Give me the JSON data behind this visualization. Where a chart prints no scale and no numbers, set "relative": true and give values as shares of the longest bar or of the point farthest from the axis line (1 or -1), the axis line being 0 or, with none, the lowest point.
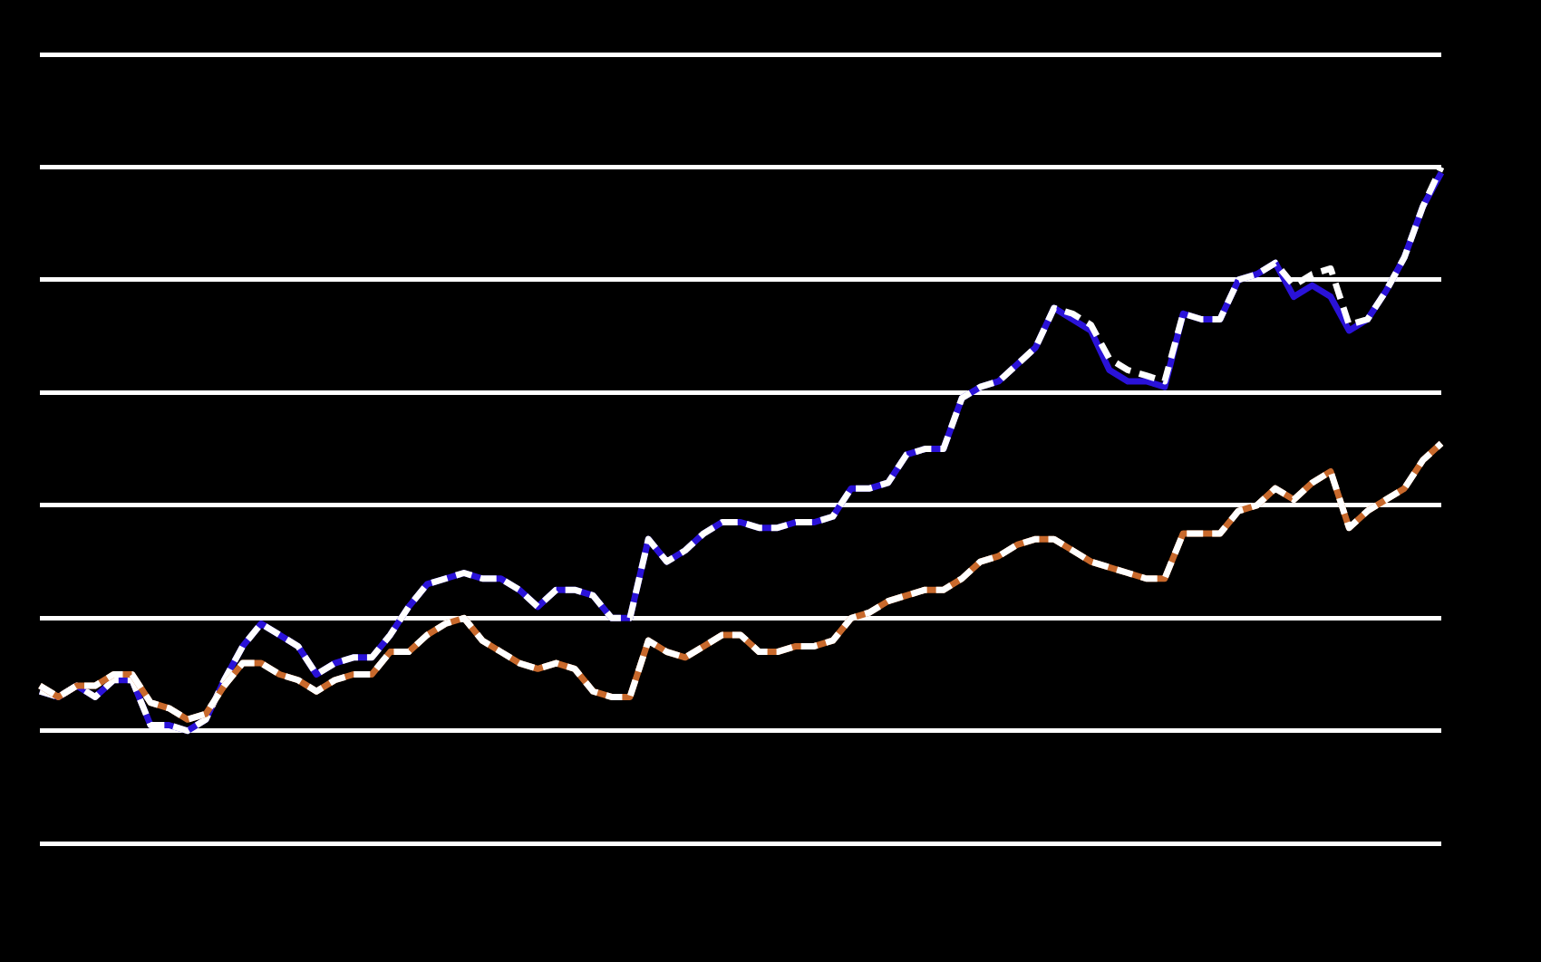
{
  "chart_data": {
    "type": "line",
    "relative": true,
    "grid": "y",
    "legend": false,
    "categories": [
      null,
      null,
      null,
      null,
      null,
      null,
      null,
      null,
      null,
      null,
      null,
      null,
      null,
      null,
      null,
      null,
      null,
      null,
      null,
      null,
      null,
      null,
      null,
      null,
      null,
      null,
      null,
      null,
      null,
      null,
      null,
      null,
      null,
      null,
      null,
      null,
      null,
      null,
      null,
      null,
      null,
      null,
      null,
      null,
      null,
      null,
      null,
      null,
      null,
      null,
      null,
      null,
      null,
      null,
      null,
      null,
      null,
      null,
      null,
      null,
      null,
      null,
      null,
      null,
      null,
      null,
      null,
      null,
      null,
      null,
      null,
      null,
      null,
      null,
      null,
      null,
      null
    ],
    "series": [
      {
        "color": "#2a12d8",
        "line_style": "solid",
        "values": [
          0.07,
          0.06,
          0.08,
          0.06,
          0.09,
          0.09,
          0.01,
          0.01,
          0,
          0.02,
          0.09,
          0.15,
          0.19,
          0.17,
          0.15,
          0.1,
          0.12,
          0.13,
          0.13,
          0.17,
          0.22,
          0.26,
          0.27,
          0.28,
          0.27,
          0.27,
          0.25,
          0.22,
          0.25,
          0.25,
          0.24,
          0.2,
          0.2,
          0.34,
          0.3,
          0.32,
          0.35,
          0.37,
          0.37,
          0.36,
          0.36,
          0.37,
          0.37,
          0.38,
          0.43,
          0.43,
          0.44,
          0.49,
          0.5,
          0.5,
          0.59,
          0.61,
          0.62,
          0.65,
          0.68,
          0.75,
          0.73,
          0.71,
          0.64,
          0.62,
          0.62,
          0.61,
          0.74,
          0.73,
          0.73,
          0.8,
          0.81,
          0.83,
          0.77,
          0.79,
          0.77,
          0.71,
          0.73,
          0.78,
          0.84,
          0.93,
          0.99
        ]
      },
      {
        "color": "#ffffff",
        "line_style": "dashed",
        "values": [
          0.07,
          0.06,
          0.08,
          0.06,
          0.09,
          0.09,
          0.01,
          0.01,
          0,
          0.02,
          0.09,
          0.15,
          0.19,
          0.17,
          0.15,
          0.1,
          0.12,
          0.13,
          0.13,
          0.17,
          0.22,
          0.26,
          0.27,
          0.28,
          0.27,
          0.27,
          0.25,
          0.22,
          0.25,
          0.25,
          0.24,
          0.2,
          0.2,
          0.34,
          0.3,
          0.32,
          0.35,
          0.37,
          0.37,
          0.36,
          0.36,
          0.37,
          0.37,
          0.38,
          0.43,
          0.43,
          0.44,
          0.49,
          0.5,
          0.5,
          0.59,
          0.61,
          0.62,
          0.65,
          0.68,
          0.75,
          0.74,
          0.72,
          0.66,
          0.64,
          0.63,
          0.62,
          0.74,
          0.73,
          0.73,
          0.8,
          0.81,
          0.83,
          0.79,
          0.81,
          0.82,
          0.72,
          0.73,
          0.78,
          0.84,
          0.93,
          1
        ]
      },
      {
        "color": "#c8692c",
        "line_style": "solid",
        "values": [
          0.08,
          0.06,
          0.08,
          0.08,
          0.1,
          0.1,
          0.05,
          0.04,
          0.02,
          0.03,
          0.08,
          0.12,
          0.12,
          0.1,
          0.09,
          0.07,
          0.09,
          0.1,
          0.1,
          0.14,
          0.14,
          0.17,
          0.19,
          0.2,
          0.16,
          0.14,
          0.12,
          0.11,
          0.12,
          0.11,
          0.07,
          0.06,
          0.06,
          0.16,
          0.14,
          0.13,
          0.15,
          0.17,
          0.17,
          0.14,
          0.14,
          0.15,
          0.15,
          0.16,
          0.2,
          0.21,
          0.23,
          0.24,
          0.25,
          0.25,
          0.27,
          0.3,
          0.31,
          0.33,
          0.34,
          0.34,
          0.32,
          0.3,
          0.29,
          0.28,
          0.27,
          0.27,
          0.35,
          0.35,
          0.35,
          0.39,
          0.4,
          0.43,
          0.41,
          0.44,
          0.46,
          0.36,
          0.39,
          0.41,
          0.43,
          0.48,
          0.51
        ]
      },
      {
        "color": "#ffffff",
        "line_style": "dashed",
        "values": [
          0.08,
          0.06,
          0.08,
          0.08,
          0.1,
          0.1,
          0.05,
          0.04,
          0.02,
          0.03,
          0.08,
          0.12,
          0.12,
          0.1,
          0.09,
          0.07,
          0.09,
          0.1,
          0.1,
          0.14,
          0.14,
          0.17,
          0.19,
          0.2,
          0.16,
          0.14,
          0.12,
          0.11,
          0.12,
          0.11,
          0.07,
          0.06,
          0.06,
          0.16,
          0.14,
          0.13,
          0.15,
          0.17,
          0.17,
          0.14,
          0.14,
          0.15,
          0.15,
          0.16,
          0.2,
          0.21,
          0.23,
          0.24,
          0.25,
          0.25,
          0.27,
          0.3,
          0.31,
          0.33,
          0.34,
          0.34,
          0.32,
          0.3,
          0.29,
          0.28,
          0.27,
          0.27,
          0.35,
          0.35,
          0.35,
          0.39,
          0.4,
          0.43,
          0.41,
          0.44,
          0.46,
          0.36,
          0.39,
          0.41,
          0.43,
          0.48,
          0.51
        ]
      }
    ]
  }
}
